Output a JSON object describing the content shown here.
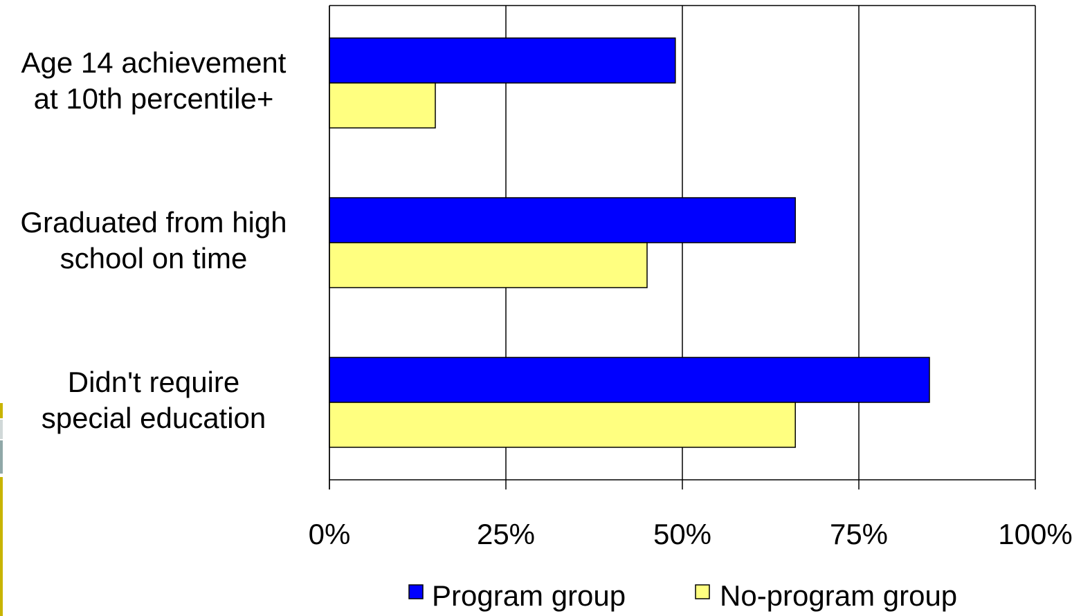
{
  "chart_data": {
    "type": "bar",
    "orientation": "horizontal",
    "categories": [
      [
        "Age 14 achievement",
        "at 10th percentile+"
      ],
      [
        "Graduated from high",
        "school on time"
      ],
      [
        "Didn't require",
        "special education"
      ]
    ],
    "series": [
      {
        "name": "Program group",
        "color": "#0000ff",
        "values": [
          49,
          66,
          85
        ]
      },
      {
        "name": "No-program group",
        "color": "#ffff80",
        "values": [
          15,
          45,
          66
        ]
      }
    ],
    "x_ticks": [
      "0%",
      "25%",
      "50%",
      "75%",
      "100%"
    ],
    "xlim": [
      0,
      100
    ],
    "grid": true,
    "legend_position": "bottom"
  },
  "colors": {
    "program": "#0000ff",
    "no_program": "#ffff80",
    "accent_gold": "#c8b400",
    "accent_gray": "#d0d8d8",
    "accent_teal": "#90a8a8"
  }
}
